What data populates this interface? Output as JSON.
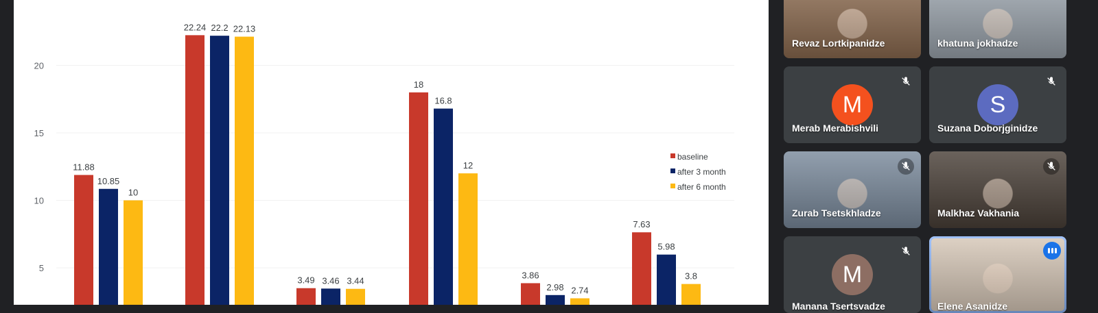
{
  "colors": {
    "baseline": "#c8392b",
    "after_3": "#0b2466",
    "after_6": "#fdb913",
    "axis_text": "#5f6368",
    "label_text": "#3c4043"
  },
  "chart_data": {
    "type": "bar",
    "categories": [
      "",
      "",
      "",
      "",
      "",
      ""
    ],
    "series": [
      {
        "name": "baseline",
        "values": [
          11.88,
          22.24,
          3.49,
          18,
          3.86,
          7.63
        ]
      },
      {
        "name": "after 3 month",
        "values": [
          10.85,
          22.2,
          3.46,
          16.8,
          2.98,
          5.98
        ]
      },
      {
        "name": "after 6 month",
        "values": [
          10,
          22.13,
          3.44,
          12,
          2.74,
          3.8
        ]
      }
    ],
    "yticks": [
      5,
      10,
      15,
      20
    ],
    "ylim": [
      3,
      25
    ],
    "legend_position": "right",
    "grid": true
  },
  "participants": [
    {
      "name": "Revaz Lortkipanidze",
      "type": "video",
      "muted": false,
      "bg": "#8b6a4f"
    },
    {
      "name": "khatuna jokhadze",
      "type": "video",
      "muted": false,
      "bg": "#9aa3ac"
    },
    {
      "name": "Merab Merabishvili",
      "type": "avatar",
      "initial": "M",
      "avatar_color": "#f4511e",
      "muted": true
    },
    {
      "name": "Suzana Doborjginidze",
      "type": "avatar",
      "initial": "S",
      "avatar_color": "#5c6bc0",
      "muted": true
    },
    {
      "name": "Zurab Tsetskhladze",
      "type": "video",
      "muted": true,
      "bg": "#7a8a9c"
    },
    {
      "name": "Malkhaz Vakhania",
      "type": "video",
      "muted": true,
      "bg": "#4a4038"
    },
    {
      "name": "Manana Tsertsvadze",
      "type": "avatar",
      "initial": "M",
      "avatar_color": "#8d6e63",
      "muted": true
    },
    {
      "name": "Elene Asanidze",
      "type": "video",
      "muted": false,
      "speaking": true,
      "bg": "#d7c8b8"
    }
  ]
}
